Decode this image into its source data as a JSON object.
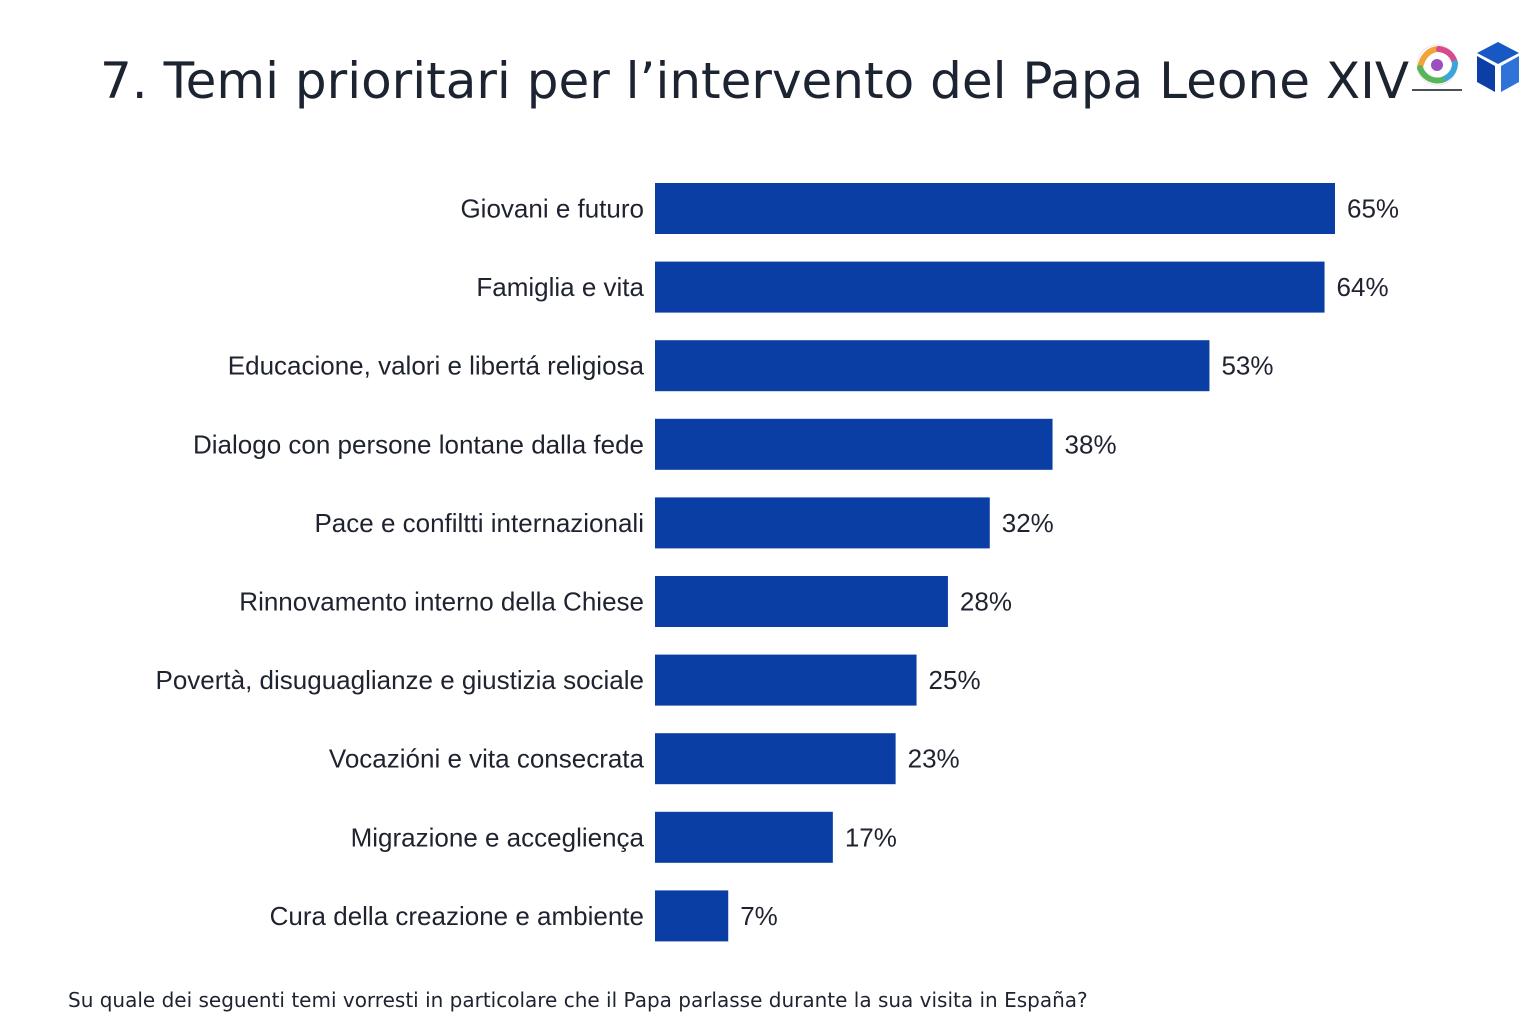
{
  "slide": {
    "title": "7. Temi prioritari per l’intervento del Papa Leone XIV",
    "question": "Su quale dei seguenti temi vorresti in particolare che il Papa parlasse durante la sua visita in España?",
    "logos": {
      "partner": "circular-colorful-logo-icon",
      "brand": "blue-cube-icon"
    }
  },
  "colors": {
    "bar": "#0a3ea4",
    "text": "#1f2330"
  },
  "chart_data": {
    "type": "bar",
    "orientation": "horizontal",
    "categories": [
      "Giovani e futuro",
      "Famiglia e vita",
      "Educacione, valori e libertá religiosa",
      "Dialogo con persone lontane dalla fede",
      "Pace e confiltti internazionali",
      "Rinnovamento interno della Chiese",
      "Povertà, disuguaglianze e giustizia sociale",
      "Vocazióni e vita consecrata",
      "Migrazione e accegliença",
      "Cura della creazione e ambiente"
    ],
    "values": [
      65,
      64,
      53,
      38,
      32,
      28,
      25,
      23,
      17,
      7
    ],
    "value_labels": [
      "65%",
      "64%",
      "53%",
      "38%",
      "32%",
      "28%",
      "25%",
      "23%",
      "17%",
      "7%"
    ],
    "title": "7. Temi prioritari per l’intervento del Papa Leone XIV",
    "xlabel": "",
    "ylabel": "",
    "xlim": [
      0,
      65
    ],
    "grid": false,
    "legend": "none"
  }
}
